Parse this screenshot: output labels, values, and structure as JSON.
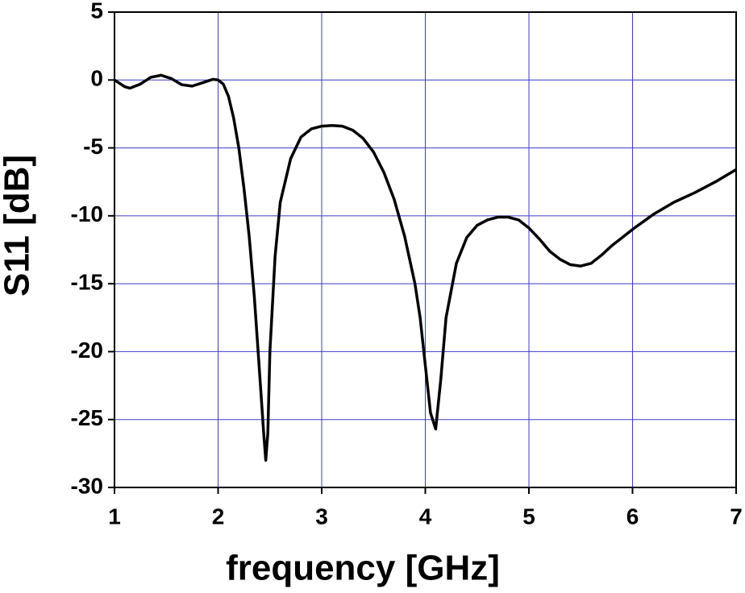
{
  "chart_data": {
    "type": "line",
    "xlabel": "frequency [GHz]",
    "ylabel": "S11 [dB]",
    "xlim": [
      1,
      7
    ],
    "xticks": [
      1,
      2,
      3,
      4,
      5,
      6,
      7
    ],
    "ylim": [
      -30,
      5
    ],
    "yticks": [
      -30,
      -25,
      -20,
      -15,
      -10,
      -5,
      0,
      5
    ],
    "grid": true,
    "grid_color": "#3b3bc8",
    "series": [
      {
        "color": "#000000",
        "x": [
          1.0,
          1.1,
          1.15,
          1.25,
          1.35,
          1.45,
          1.55,
          1.65,
          1.75,
          1.85,
          1.95,
          2.0,
          2.05,
          2.1,
          2.15,
          2.2,
          2.25,
          2.3,
          2.35,
          2.4,
          2.44,
          2.46,
          2.48,
          2.5,
          2.55,
          2.6,
          2.7,
          2.8,
          2.9,
          3.0,
          3.1,
          3.2,
          3.3,
          3.4,
          3.5,
          3.6,
          3.7,
          3.8,
          3.9,
          3.95,
          4.0,
          4.05,
          4.1,
          4.15,
          4.2,
          4.3,
          4.4,
          4.5,
          4.6,
          4.7,
          4.8,
          4.9,
          5.0,
          5.1,
          5.2,
          5.3,
          5.4,
          5.5,
          5.6,
          5.7,
          5.8,
          5.9,
          6.0,
          6.2,
          6.4,
          6.6,
          6.8,
          7.0
        ],
        "values": [
          0,
          -0.5,
          -0.6,
          -0.3,
          0.2,
          0.35,
          0.1,
          -0.35,
          -0.45,
          -0.2,
          0.05,
          0,
          -0.3,
          -1.2,
          -2.8,
          -5.0,
          -8.0,
          -11.5,
          -16,
          -21.5,
          -26,
          -28,
          -26,
          -20,
          -13,
          -9,
          -5.8,
          -4.2,
          -3.6,
          -3.4,
          -3.35,
          -3.4,
          -3.7,
          -4.3,
          -5.3,
          -6.8,
          -8.8,
          -11.5,
          -15,
          -17.5,
          -21,
          -24.5,
          -25.7,
          -22,
          -17.5,
          -13.5,
          -11.6,
          -10.7,
          -10.3,
          -10.1,
          -10.1,
          -10.3,
          -10.9,
          -11.7,
          -12.6,
          -13.2,
          -13.6,
          -13.7,
          -13.5,
          -12.9,
          -12.2,
          -11.6,
          -11.0,
          -9.9,
          -9.0,
          -8.3,
          -7.5,
          -6.6
        ]
      }
    ]
  }
}
